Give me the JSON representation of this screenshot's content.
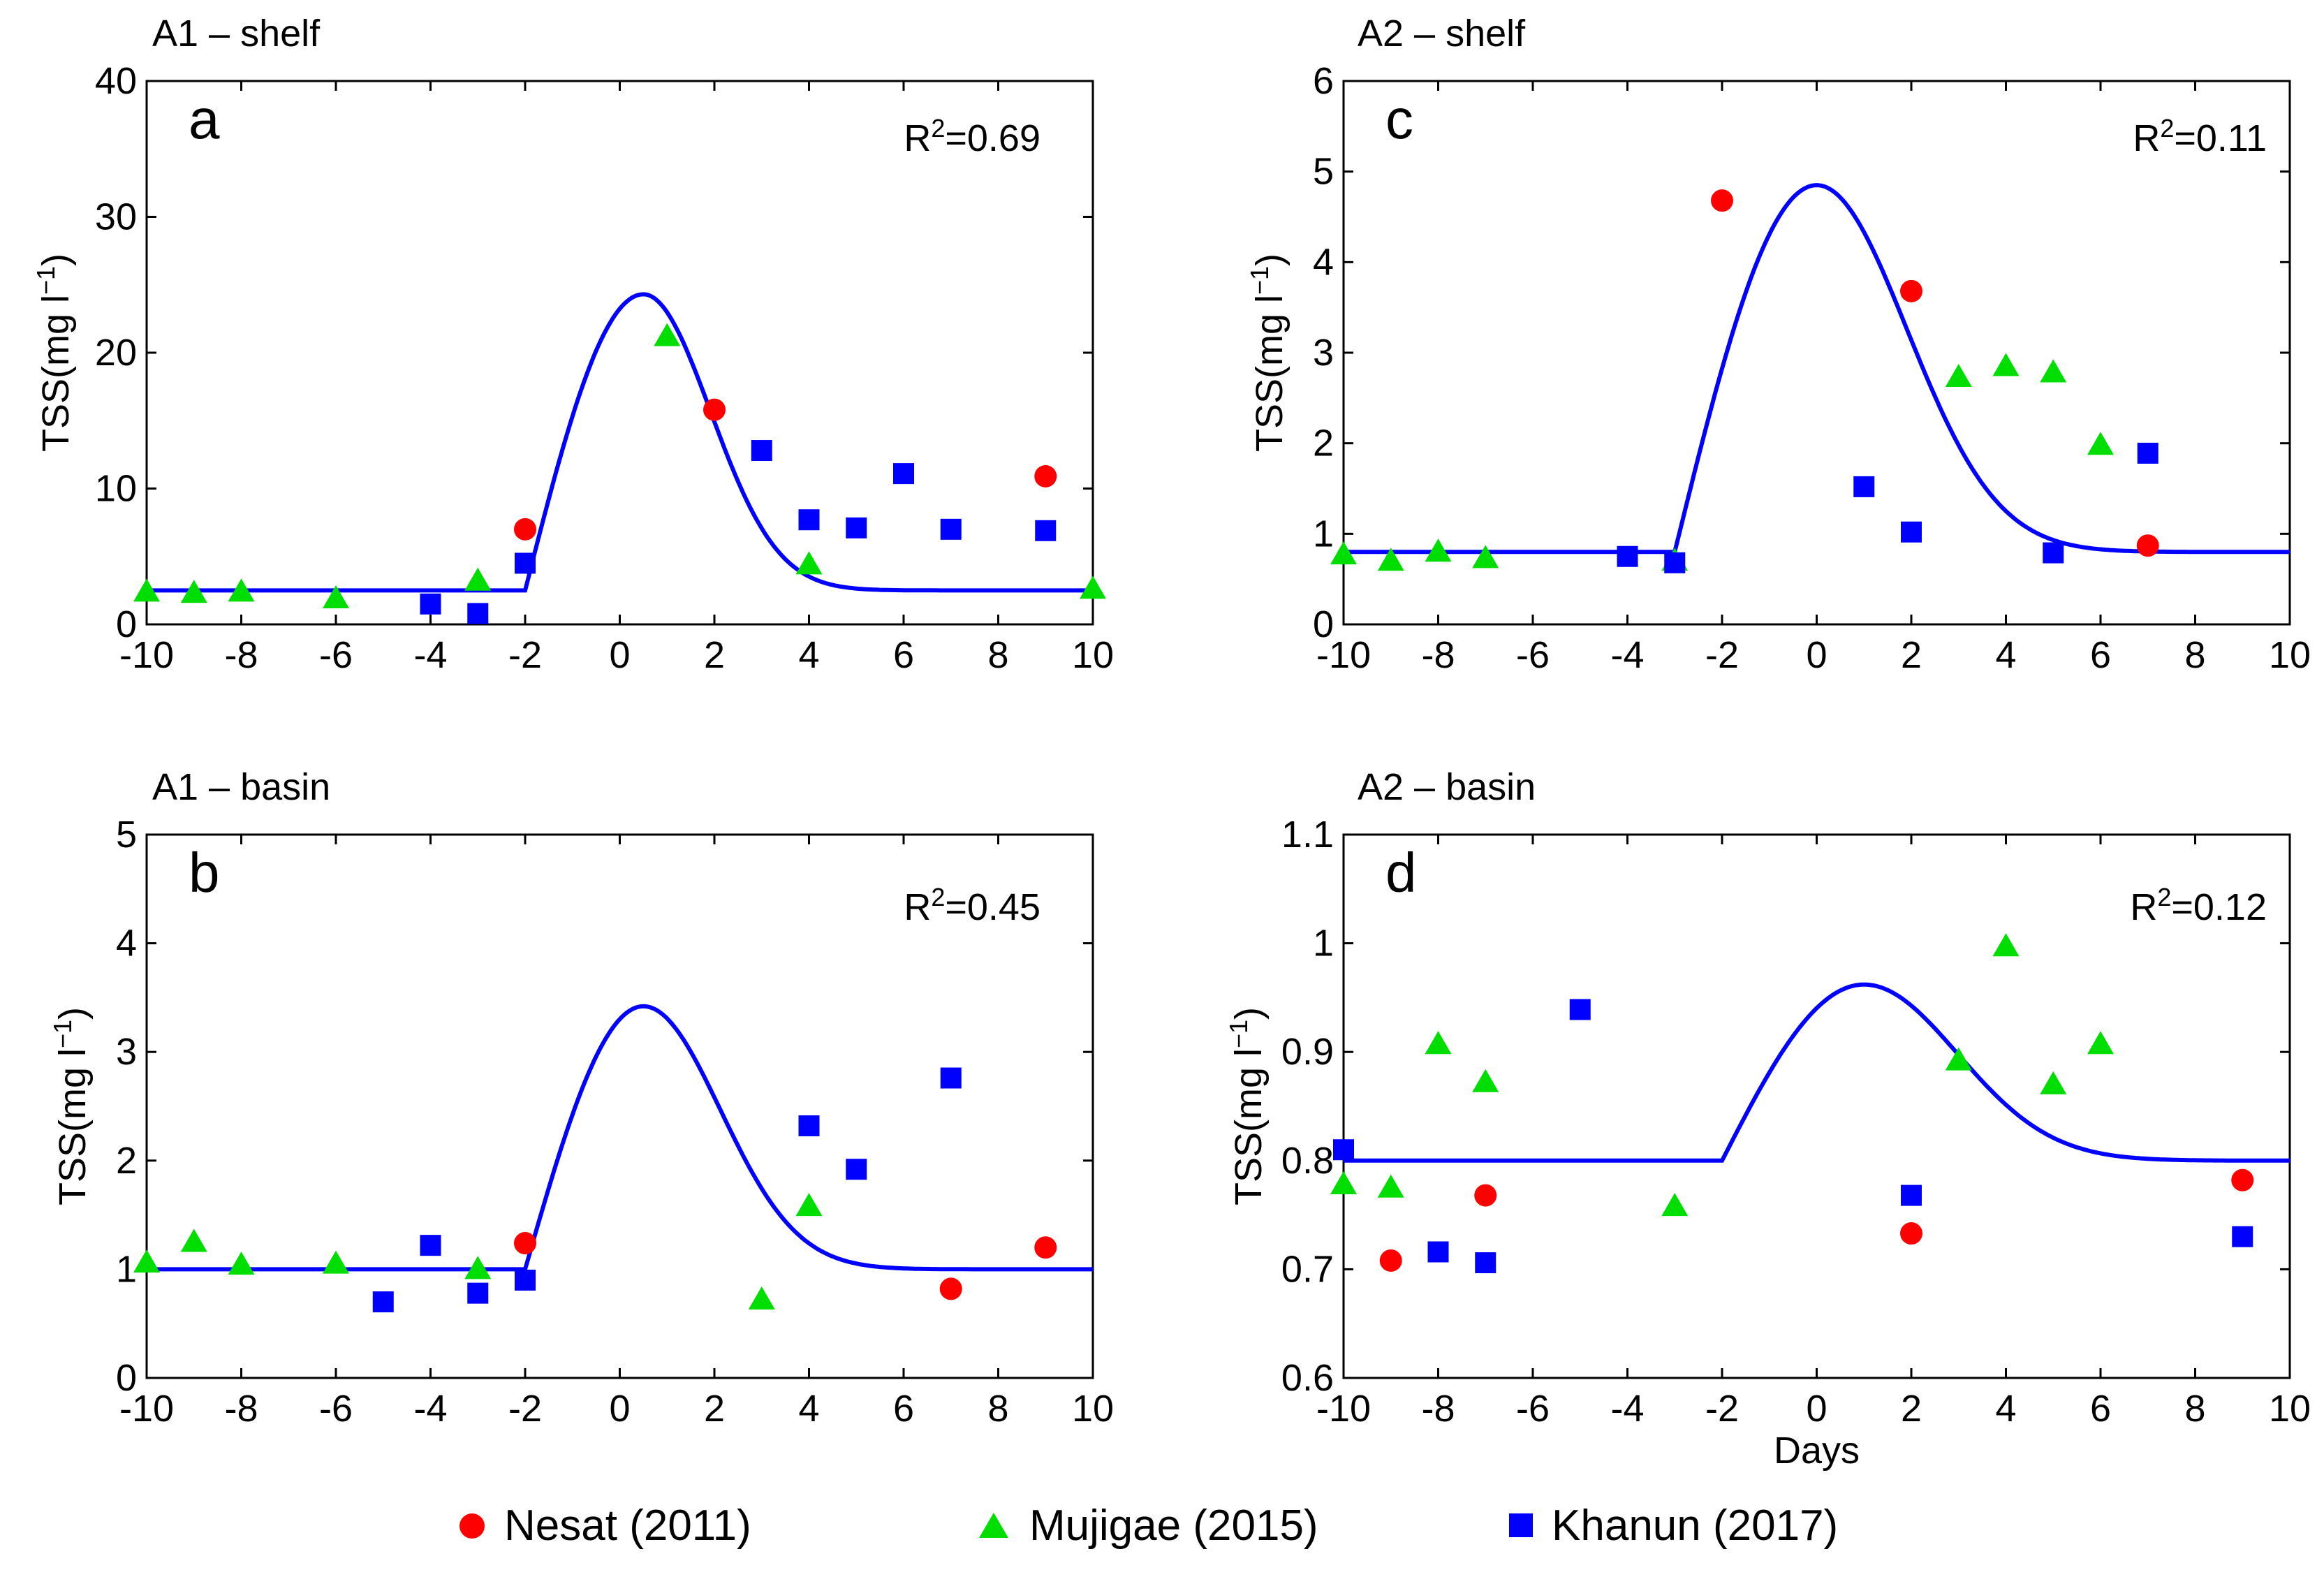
{
  "figure": {
    "xlabel": "Days",
    "colors": {
      "Nesat (2011)": "#ff0000",
      "Mujigae (2015)": "#00dd00",
      "Khanun (2017)": "#0000ff",
      "fit": "#0000ff",
      "axis": "#000000"
    }
  },
  "legend": {
    "placement": "bottom-center",
    "items": [
      {
        "label": "Nesat (2011)",
        "marker": "circle",
        "color": "#ff0000"
      },
      {
        "label": "Mujigae (2015)",
        "marker": "triangle",
        "color": "#00dd00"
      },
      {
        "label": "Khanun (2017)",
        "marker": "square",
        "color": "#0000ff"
      }
    ]
  },
  "chart_data": [
    {
      "panel": "a",
      "title": "A1 – shelf",
      "type": "scatter",
      "xlabel": "",
      "ylabel": "TSS(mg l",
      "ylabel_sup": "−1",
      "xlim": [
        -10,
        10
      ],
      "ylim": [
        0,
        40
      ],
      "xticks": [
        -10,
        -8,
        -6,
        -4,
        -2,
        0,
        2,
        4,
        6,
        8,
        10
      ],
      "yticks": [
        0,
        10,
        20,
        30,
        40
      ],
      "r2": "R²=0.69",
      "r2_base": "R",
      "r2_sup": "2",
      "r2_value": "=0.69",
      "fit": {
        "baseline": 2.5,
        "peak": 24.3,
        "start": -2,
        "peak_day": 0.5,
        "tail_width": 2.0
      },
      "series": [
        {
          "name": "Nesat (2011)",
          "marker": "circle",
          "points": [
            [
              -2,
              7.0
            ],
            [
              2,
              15.8
            ],
            [
              9,
              10.9
            ]
          ]
        },
        {
          "name": "Mujigae (2015)",
          "marker": "triangle",
          "points": [
            [
              -10,
              2.4
            ],
            [
              -9,
              2.3
            ],
            [
              -8,
              2.4
            ],
            [
              -6,
              1.9
            ],
            [
              -3,
              3.2
            ],
            [
              1,
              21.2
            ],
            [
              4,
              4.4
            ],
            [
              10,
              2.6
            ]
          ]
        },
        {
          "name": "Khanun (2017)",
          "marker": "square",
          "points": [
            [
              -4,
              1.5
            ],
            [
              -3,
              0.8
            ],
            [
              -2,
              4.5
            ],
            [
              3,
              12.8
            ],
            [
              4,
              7.7
            ],
            [
              5,
              7.1
            ],
            [
              6,
              11.1
            ],
            [
              7,
              7.0
            ],
            [
              9,
              6.9
            ]
          ]
        }
      ]
    },
    {
      "panel": "c",
      "title": "A2 – shelf",
      "type": "scatter",
      "xlabel": "",
      "ylabel": "TSS(mg l",
      "ylabel_sup": "−1",
      "xlim": [
        -10,
        10
      ],
      "ylim": [
        0,
        6
      ],
      "xticks": [
        -10,
        -8,
        -6,
        -4,
        -2,
        0,
        2,
        4,
        6,
        8,
        10
      ],
      "yticks": [
        0,
        1,
        2,
        3,
        4,
        5,
        6
      ],
      "r2": "R²=0.11",
      "r2_base": "R",
      "r2_sup": "2",
      "r2_value": "=0.11",
      "fit": {
        "baseline": 0.8,
        "peak": 4.85,
        "start": -3,
        "peak_day": 0,
        "tail_width": 2.7
      },
      "series": [
        {
          "name": "Nesat (2011)",
          "marker": "circle",
          "points": [
            [
              -2,
              4.68
            ],
            [
              2,
              3.68
            ],
            [
              7,
              0.87
            ]
          ]
        },
        {
          "name": "Mujigae (2015)",
          "marker": "triangle",
          "points": [
            [
              -10,
              0.77
            ],
            [
              -9,
              0.7
            ],
            [
              -8,
              0.8
            ],
            [
              -7,
              0.73
            ],
            [
              -3,
              0.7
            ],
            [
              3,
              2.73
            ],
            [
              4,
              2.85
            ],
            [
              5,
              2.78
            ],
            [
              6,
              1.98
            ]
          ]
        },
        {
          "name": "Khanun (2017)",
          "marker": "square",
          "points": [
            [
              -4,
              0.75
            ],
            [
              -3,
              0.68
            ],
            [
              1,
              1.52
            ],
            [
              2,
              1.02
            ],
            [
              5,
              0.79
            ],
            [
              7,
              1.89
            ]
          ]
        }
      ]
    },
    {
      "panel": "b",
      "title": "A1 – basin",
      "type": "scatter",
      "xlabel": "",
      "ylabel": "TSS(mg l",
      "ylabel_sup": "−1",
      "xlim": [
        -10,
        10
      ],
      "ylim": [
        0,
        5
      ],
      "xticks": [
        -10,
        -8,
        -6,
        -4,
        -2,
        0,
        2,
        4,
        6,
        8,
        10
      ],
      "yticks": [
        0,
        1,
        2,
        3,
        4,
        5
      ],
      "r2": "R²=0.45",
      "r2_base": "R",
      "r2_sup": "2",
      "r2_value": "=0.45",
      "fit": {
        "baseline": 1.0,
        "peak": 3.42,
        "start": -2,
        "peak_day": 0.5,
        "tail_width": 2.3
      },
      "series": [
        {
          "name": "Nesat (2011)",
          "marker": "circle",
          "points": [
            [
              -2,
              1.24
            ],
            [
              7,
              0.82
            ],
            [
              9,
              1.2
            ]
          ]
        },
        {
          "name": "Mujigae (2015)",
          "marker": "triangle",
          "points": [
            [
              -10,
              1.06
            ],
            [
              -9,
              1.25
            ],
            [
              -8,
              1.04
            ],
            [
              -6,
              1.05
            ],
            [
              -3,
              1.0
            ],
            [
              3,
              0.72
            ],
            [
              4,
              1.58
            ]
          ]
        },
        {
          "name": "Khanun (2017)",
          "marker": "square",
          "points": [
            [
              -5,
              0.7
            ],
            [
              -4,
              1.22
            ],
            [
              -3,
              0.78
            ],
            [
              -2,
              0.9
            ],
            [
              4,
              2.32
            ],
            [
              5,
              1.92
            ],
            [
              7,
              2.76
            ]
          ]
        }
      ]
    },
    {
      "panel": "d",
      "title": "A2 – basin",
      "type": "scatter",
      "xlabel": "Days",
      "ylabel": "TSS(mg l",
      "ylabel_sup": "−1",
      "xlim": [
        -10,
        10
      ],
      "ylim": [
        0.6,
        1.1
      ],
      "xticks": [
        -10,
        -8,
        -6,
        -4,
        -2,
        0,
        2,
        4,
        6,
        8,
        10
      ],
      "yticks": [
        0.6,
        0.7,
        0.8,
        0.9,
        1,
        1.1
      ],
      "r2": "R²=0.12",
      "r2_base": "R",
      "r2_sup": "2",
      "r2_value": "=0.12",
      "fit": {
        "baseline": 0.8,
        "peak": 0.962,
        "start": -2,
        "peak_day": 1,
        "tail_width": 2.8
      },
      "series": [
        {
          "name": "Nesat (2011)",
          "marker": "circle",
          "points": [
            [
              -9,
              0.708
            ],
            [
              -7,
              0.768
            ],
            [
              2,
              0.733
            ],
            [
              9,
              0.782
            ]
          ]
        },
        {
          "name": "Mujigae (2015)",
          "marker": "triangle",
          "points": [
            [
              -10,
              0.778
            ],
            [
              -9,
              0.775
            ],
            [
              -8,
              0.907
            ],
            [
              -7,
              0.872
            ],
            [
              -3,
              0.758
            ],
            [
              3,
              0.892
            ],
            [
              4,
              0.997
            ],
            [
              5,
              0.87
            ],
            [
              6,
              0.907
            ]
          ]
        },
        {
          "name": "Khanun (2017)",
          "marker": "square",
          "points": [
            [
              -10,
              0.81
            ],
            [
              -8,
              0.716
            ],
            [
              -7,
              0.706
            ],
            [
              -5,
              0.939
            ],
            [
              2,
              0.768
            ],
            [
              9,
              0.73
            ]
          ]
        }
      ]
    }
  ]
}
